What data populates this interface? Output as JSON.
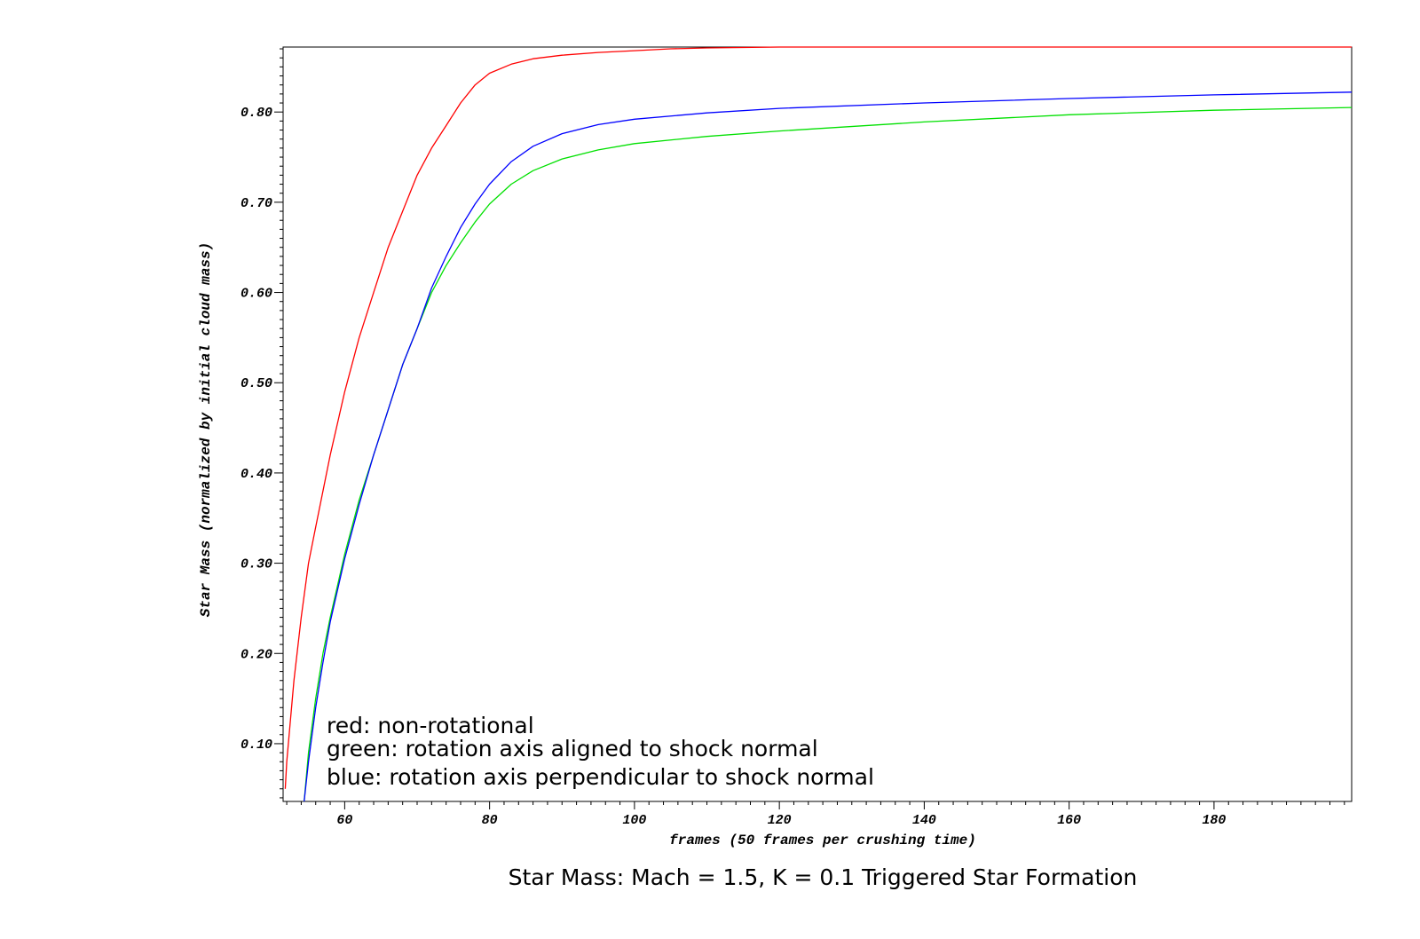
{
  "chart_data": {
    "type": "line",
    "title": "Star Mass: Mach = 1.5, K = 0.1 Triggered Star Formation",
    "xlabel": "frames (50 frames per crushing time)",
    "ylabel": "Star Mass (normalized by initial cloud mass)",
    "xlim": [
      51.5,
      199
    ],
    "ylim": [
      0.036,
      0.872
    ],
    "x_ticks": [
      60,
      80,
      100,
      120,
      140,
      160,
      180
    ],
    "x_tick_labels": [
      "60",
      "80",
      "100",
      "120",
      "140",
      "160",
      "180"
    ],
    "y_ticks": [
      0.1,
      0.2,
      0.3,
      0.4,
      0.5,
      0.6,
      0.7,
      0.8
    ],
    "y_tick_labels": [
      "0.10",
      "0.20",
      "0.30",
      "0.40",
      "0.50",
      "0.60",
      "0.70",
      "0.80"
    ],
    "grid": false,
    "annotations": [
      "red: non-rotational",
      "green: rotation axis aligned to shock normal",
      "blue: rotation axis perpendicular to shock normal"
    ],
    "series": [
      {
        "color": "#ff0000",
        "x": [
          51.8,
          52,
          53,
          54,
          55,
          56,
          58,
          60,
          62,
          64,
          66,
          68,
          70,
          72,
          74,
          76,
          78,
          80,
          83,
          86,
          90,
          95,
          100,
          105,
          110,
          120,
          140,
          160,
          180,
          199
        ],
        "y": [
          0.05,
          0.08,
          0.17,
          0.24,
          0.3,
          0.34,
          0.42,
          0.49,
          0.55,
          0.6,
          0.65,
          0.69,
          0.73,
          0.76,
          0.785,
          0.81,
          0.83,
          0.843,
          0.853,
          0.859,
          0.863,
          0.866,
          0.868,
          0.87,
          0.871,
          0.872,
          0.872,
          0.872,
          0.872,
          0.872
        ]
      },
      {
        "color": "#00e000",
        "x": [
          54.4,
          55,
          56,
          57,
          58,
          60,
          62,
          64,
          66,
          68,
          70,
          72,
          74,
          76,
          78,
          80,
          83,
          86,
          90,
          95,
          100,
          110,
          120,
          140,
          160,
          180,
          199
        ],
        "y": [
          0.036,
          0.09,
          0.15,
          0.2,
          0.24,
          0.31,
          0.37,
          0.42,
          0.47,
          0.52,
          0.56,
          0.6,
          0.63,
          0.655,
          0.678,
          0.698,
          0.72,
          0.735,
          0.748,
          0.758,
          0.765,
          0.773,
          0.779,
          0.789,
          0.797,
          0.802,
          0.805
        ]
      },
      {
        "color": "#0000ff",
        "x": [
          54.4,
          55,
          56,
          57,
          58,
          60,
          62,
          64,
          66,
          68,
          70,
          72,
          74,
          76,
          78,
          80,
          83,
          86,
          90,
          95,
          100,
          110,
          120,
          140,
          160,
          180,
          199
        ],
        "y": [
          0.036,
          0.08,
          0.14,
          0.19,
          0.235,
          0.305,
          0.365,
          0.42,
          0.47,
          0.52,
          0.56,
          0.605,
          0.64,
          0.672,
          0.698,
          0.72,
          0.745,
          0.762,
          0.776,
          0.786,
          0.792,
          0.799,
          0.804,
          0.81,
          0.815,
          0.819,
          0.822
        ]
      }
    ]
  }
}
